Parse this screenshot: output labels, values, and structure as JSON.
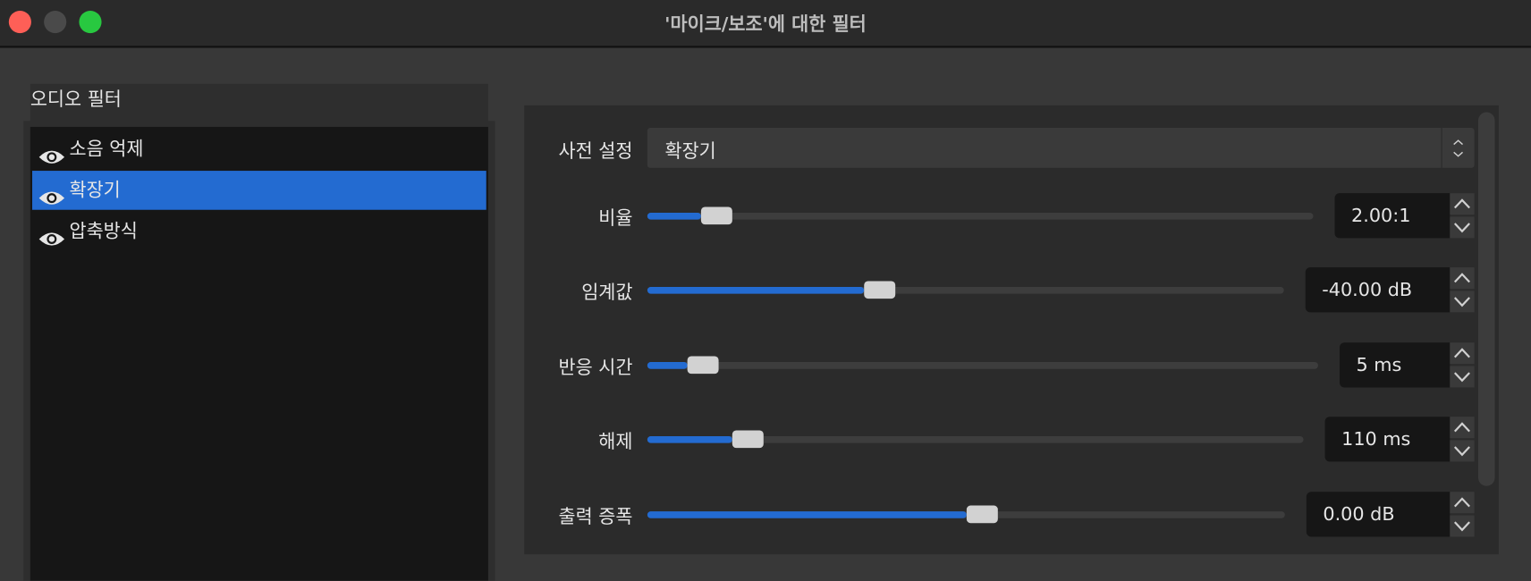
{
  "window": {
    "title": "'마이크/보조'에 대한 필터",
    "traffic_lights": {
      "close": "#fe5f57",
      "minimize": "#4a4a4a",
      "zoom": "#28c840"
    }
  },
  "sidebar": {
    "header": "오디오 필터",
    "items": [
      {
        "label": "소음 억제",
        "icon": "eye-icon",
        "selected": false
      },
      {
        "label": "확장기",
        "icon": "eye-icon",
        "selected": true
      },
      {
        "label": "압축방식",
        "icon": "eye-icon",
        "selected": false
      }
    ]
  },
  "settings": {
    "preset": {
      "label": "사전 설정",
      "value": "확장기"
    },
    "sliders": [
      {
        "label": "비율",
        "value": "2.00:1",
        "position": 0.08
      },
      {
        "label": "임계값",
        "value": "-40.00 dB",
        "position": 0.34
      },
      {
        "label": "반응 시간",
        "value": "5 ms",
        "position": 0.06
      },
      {
        "label": "해제",
        "value": "110 ms",
        "position": 0.13
      },
      {
        "label": "출력 증폭",
        "value": "0.00 dB",
        "position": 0.5
      }
    ]
  },
  "colors": {
    "accent": "#236bd1"
  }
}
